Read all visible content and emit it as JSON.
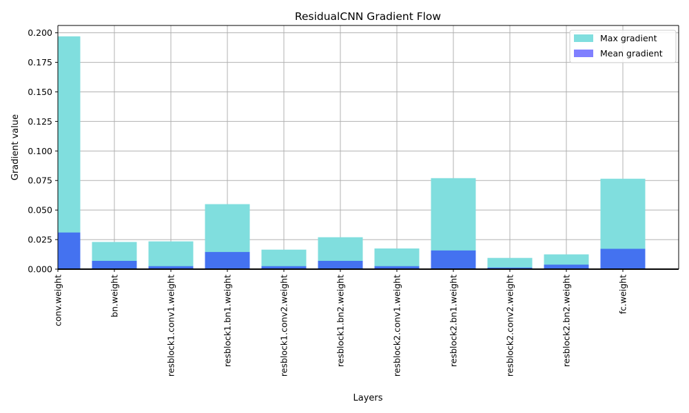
{
  "chart_data": {
    "type": "bar",
    "title": "ResidualCNN Gradient Flow",
    "xlabel": "Layers",
    "ylabel": "Gradient value",
    "categories": [
      "conv.weight",
      "bn.weight",
      "resblock1.conv1.weight",
      "resblock1.bn1.weight",
      "resblock1.conv2.weight",
      "resblock1.bn2.weight",
      "resblock2.conv1.weight",
      "resblock2.bn1.weight",
      "resblock2.conv2.weight",
      "resblock2.bn2.weight",
      "fc.weight"
    ],
    "series": [
      {
        "name": "Max gradient",
        "color": "#80dede",
        "values": [
          0.197,
          0.023,
          0.0235,
          0.055,
          0.0165,
          0.027,
          0.0175,
          0.077,
          0.0095,
          0.0125,
          0.0765
        ]
      },
      {
        "name": "Mean gradient",
        "color": "#4472f0",
        "legend_color": "#8080ff",
        "values": [
          0.031,
          0.007,
          0.0025,
          0.0145,
          0.0025,
          0.007,
          0.0025,
          0.0158,
          0.0013,
          0.0038,
          0.0172
        ]
      }
    ],
    "ylim": [
      0,
      0.2062
    ],
    "yticks": [
      "0.000",
      "0.025",
      "0.050",
      "0.075",
      "0.100",
      "0.125",
      "0.150",
      "0.175",
      "0.200"
    ],
    "grid": true,
    "legend_position": "top-right"
  }
}
